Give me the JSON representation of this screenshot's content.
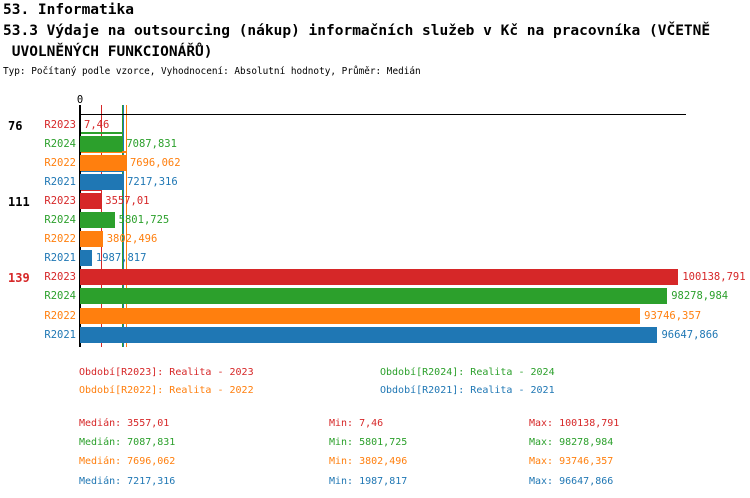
{
  "header": {
    "line1": "53. Informatika",
    "line2": "53.3 Výdaje na outsourcing (nákup) informačních služeb v Kč na pracovníka (VČETNĚ",
    "line3": " UVOLNĚNÝCH FUNKCIONÁŘŮ)",
    "meta": "Typ: Počítaný podle vzorce, Vyhodnocení: Absolutní hodnoty, Průměr: Medián"
  },
  "colors": {
    "R2023": "#d62728",
    "R2024": "#2ca02c",
    "R2022": "#ff7f0e",
    "R2021": "#1f77b4",
    "axis": "#000000"
  },
  "chart_data": {
    "type": "bar",
    "orientation": "horizontal",
    "title": "53.3 Výdaje na outsourcing (nákup) informačních služeb v Kč na pracovníka (VČETNĚ UVOLNĚNÝCH FUNKCIONÁŘŮ)",
    "x_axis": {
      "origin_label": "0",
      "xlim": [
        0,
        101500
      ],
      "gridlines": false
    },
    "categories": [
      "76",
      "111",
      "139"
    ],
    "category_label_colors": [
      "#000000",
      "#000000",
      "#d62728"
    ],
    "bar_order_in_group": [
      "R2023",
      "R2024",
      "R2022",
      "R2021"
    ],
    "series": [
      {
        "name": "R2023",
        "color": "#d62728",
        "values": [
          7.46,
          3557.01,
          100138.791
        ],
        "value_labels": [
          "7,46",
          "3557,01",
          "100138,791"
        ],
        "median": 3557.01
      },
      {
        "name": "R2024",
        "color": "#2ca02c",
        "values": [
          7087.831,
          5801.725,
          98278.984
        ],
        "value_labels": [
          "7087,831",
          "5801,725",
          "98278,984"
        ],
        "median": 7087.831
      },
      {
        "name": "R2022",
        "color": "#ff7f0e",
        "values": [
          7696.062,
          3802.496,
          93746.357
        ],
        "value_labels": [
          "7696,062",
          "3802,496",
          "93746,357"
        ],
        "median": 7696.062
      },
      {
        "name": "R2021",
        "color": "#1f77b4",
        "values": [
          7217.316,
          1987.817,
          96647.866
        ],
        "value_labels": [
          "7217,316",
          "1987,817",
          "96647,866"
        ],
        "median": 7217.316
      }
    ]
  },
  "legend": {
    "items": [
      {
        "series": "R2023",
        "label": "Období[R2023]: Realita - 2023"
      },
      {
        "series": "R2024",
        "label": "Období[R2024]: Realita - 2024"
      },
      {
        "series": "R2022",
        "label": "Období[R2022]: Realita - 2022"
      },
      {
        "series": "R2021",
        "label": "Období[R2021]: Realita - 2021"
      }
    ]
  },
  "stats": {
    "rows": [
      {
        "series": "R2023",
        "median": "Medián: 3557,01",
        "min": "Min: 7,46",
        "max": "Max: 100138,791"
      },
      {
        "series": "R2024",
        "median": "Medián: 7087,831",
        "min": "Min: 5801,725",
        "max": "Max: 98278,984"
      },
      {
        "series": "R2022",
        "median": "Medián: 7696,062",
        "min": "Min: 3802,496",
        "max": "Max: 93746,357"
      },
      {
        "series": "R2021",
        "median": "Medián: 7217,316",
        "min": "Min: 1987,817",
        "max": "Max: 96647,866"
      }
    ]
  }
}
